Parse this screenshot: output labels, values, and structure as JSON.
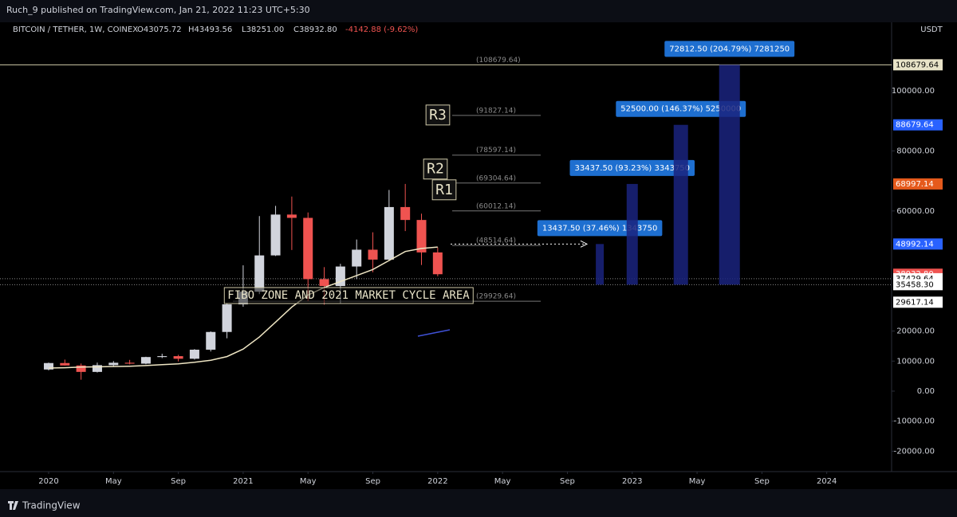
{
  "header": {
    "publisher": "Ruch_9 published on TradingView.com, Jan 21, 2022 11:23 UTC+5:30"
  },
  "symbol": {
    "name": "BITCOIN / TETHER, 1W, COINEX",
    "open": "O43075.72",
    "high": "H43493.56",
    "low": "L38251.00",
    "close": "C38932.80",
    "change": "-4142.88 (-9.62%)"
  },
  "currency": "USDT",
  "footer": "TradingView",
  "chart_data": {
    "type": "candlestick",
    "x": [
      "2020-01",
      "2020-02",
      "2020-03",
      "2020-04",
      "2020-05",
      "2020-06",
      "2020-07",
      "2020-08",
      "2020-09",
      "2020-10",
      "2020-11",
      "2020-12",
      "2021-01",
      "2021-02",
      "2021-03",
      "2021-04",
      "2021-05",
      "2021-06",
      "2021-07",
      "2021-08",
      "2021-09",
      "2021-10",
      "2021-11",
      "2021-12",
      "2022-01"
    ],
    "open": [
      7200,
      9350,
      8550,
      6400,
      8650,
      9450,
      9150,
      11350,
      11650,
      10780,
      13800,
      19700,
      28900,
      33100,
      45200,
      58800,
      57700,
      37300,
      35000,
      41500,
      47100,
      43800,
      61300,
      57000,
      46200
    ],
    "high": [
      9500,
      10500,
      9200,
      9500,
      10000,
      10400,
      11450,
      12450,
      12100,
      14000,
      19900,
      29300,
      41900,
      58300,
      61700,
      64800,
      59500,
      41300,
      42400,
      50500,
      52900,
      67000,
      69000,
      59100,
      47900
    ],
    "low": [
      6900,
      8500,
      3800,
      6200,
      8100,
      8900,
      8950,
      11000,
      9900,
      10500,
      13200,
      17600,
      28100,
      32300,
      45000,
      47000,
      30000,
      28800,
      29300,
      37300,
      39600,
      43300,
      53300,
      42000,
      38250
    ],
    "close": [
      9350,
      8550,
      6400,
      8650,
      9450,
      9150,
      11350,
      11650,
      10780,
      13800,
      19700,
      28900,
      33100,
      45200,
      58800,
      57700,
      37300,
      35000,
      41500,
      47100,
      43800,
      61300,
      57000,
      46200,
      38930
    ],
    "up_color": "#d1d4dc",
    "down_color": "#ef5350",
    "ma": {
      "color": "#efe6c4",
      "values": [
        7700,
        7800,
        8000,
        8100,
        8200,
        8300,
        8500,
        8800,
        9100,
        9600,
        10300,
        11500,
        14000,
        18000,
        23000,
        28000,
        32000,
        34500,
        36500,
        38500,
        40500,
        43500,
        46500,
        47500,
        48000
      ]
    },
    "levels": {
      "values": [
        108679.64,
        91827.14,
        78597.14,
        69304.64,
        60012.14,
        48514.64,
        29929.64
      ],
      "value_labels": [
        "(108679.64)",
        "(91827.14)",
        "(78597.14)",
        "(69304.64)",
        "(60012.14)",
        "(48514.64)",
        "(29929.64)"
      ]
    },
    "annotations": [
      "R3",
      "R2",
      "R1",
      "FIBO ZONE AND 2021 MARKET CYCLE AREA"
    ],
    "projections": [
      {
        "x": "2022-11",
        "bottom": 35458.3,
        "top": 48992.14,
        "label": "13437.50 (37.46%) 1343750"
      },
      {
        "x": "2023-01",
        "bottom": 35458.3,
        "top": 68997.14,
        "label": "33437.50 (93.23%) 3343750"
      },
      {
        "x": "2023-04",
        "bottom": 35458.3,
        "top": 88679.64,
        "label": "52500.00 (146.37%) 5250000"
      },
      {
        "x": "2023-07",
        "bottom": 35458.3,
        "top": 108679.64,
        "label": "72812.50 (204.79%) 7281250"
      }
    ],
    "price_labels": [
      {
        "value": 108679.64,
        "label": "108679.64",
        "color": "#e8e3c8"
      },
      {
        "value": 88679.64,
        "label": "88679.64",
        "color": "#2962ff"
      },
      {
        "value": 68997.14,
        "label": "68997.14",
        "color": "#e55a1c"
      },
      {
        "value": 48992.14,
        "label": "48992.14",
        "color": "#2962ff"
      },
      {
        "value": 38932.8,
        "label": "38932.80",
        "color": "#ef5350"
      },
      {
        "value": 37429.64,
        "label": "37429.64",
        "color": "#ffffff"
      },
      {
        "value": 35458.3,
        "label": "35458.30",
        "color": "#ffffff"
      },
      {
        "value": 29617.14,
        "label": "29617.14",
        "color": "#ffffff"
      }
    ],
    "xlim": [
      "2019-10",
      "2024-05"
    ],
    "xticks": [
      {
        "value": "2020-01",
        "label": "2020"
      },
      {
        "value": "2020-05",
        "label": "May"
      },
      {
        "value": "2020-09",
        "label": "Sep"
      },
      {
        "value": "2021-01",
        "label": "2021"
      },
      {
        "value": "2021-05",
        "label": "May"
      },
      {
        "value": "2021-09",
        "label": "Sep"
      },
      {
        "value": "2022-01",
        "label": "2022"
      },
      {
        "value": "2022-05",
        "label": "May"
      },
      {
        "value": "2022-09",
        "label": "Sep"
      },
      {
        "value": "2023-01",
        "label": "2023"
      },
      {
        "value": "2023-05",
        "label": "May"
      },
      {
        "value": "2023-09",
        "label": "Sep"
      },
      {
        "value": "2024-01",
        "label": "2024"
      }
    ],
    "ylim": [
      -26800,
      122300
    ],
    "yticks": [
      {
        "value": 100000,
        "label": "100000.00"
      },
      {
        "value": 80000,
        "label": "80000.00"
      },
      {
        "value": 60000,
        "label": "60000.00"
      },
      {
        "value": 20000,
        "label": "20000.00"
      },
      {
        "value": 10000,
        "label": "10000.00"
      },
      {
        "value": 0,
        "label": "0.00"
      },
      {
        "value": -10000,
        "label": "-10000.00"
      },
      {
        "value": -20000,
        "label": "-20000.00"
      }
    ]
  }
}
